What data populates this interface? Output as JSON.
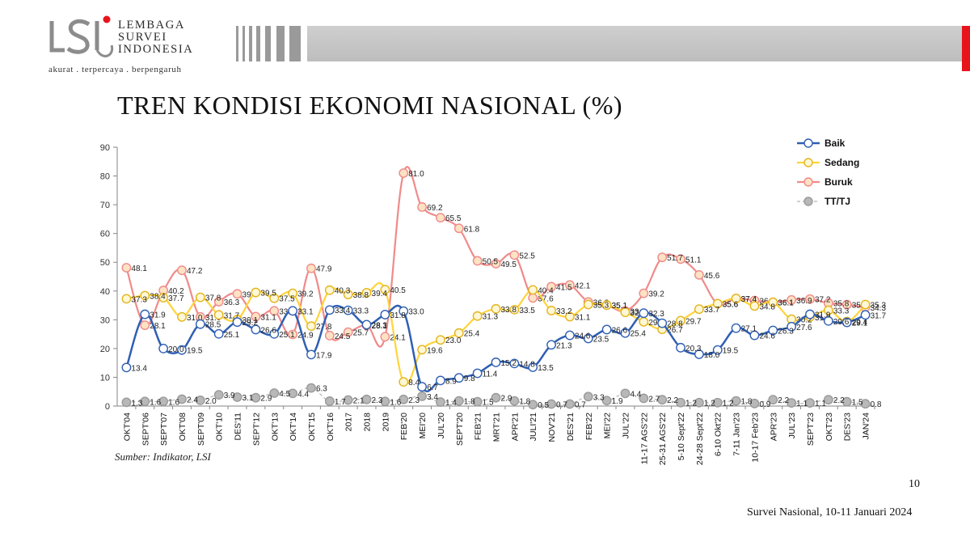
{
  "logo": {
    "line1": "LEMBAGA",
    "line2": "SURVEI",
    "line3": "INDONESIA",
    "tagline": "akurat . terpercaya . berpengaruh"
  },
  "title": "TREN KONDISI EKONOMI NASIONAL (%)",
  "source": "Sumber: Indikator, LSI",
  "page_number": "10",
  "survey_label": "Survei Nasional, 10-11 Januari 2024",
  "colors": {
    "accent_red": "#e8141c",
    "baik": "#2f5fb3",
    "sedang": "#ffd43b",
    "buruk": "#f08a8a",
    "tt": "#a6a6a6"
  },
  "chart_data": {
    "type": "line",
    "title": "TREN KONDISI EKONOMI NASIONAL (%)",
    "ylim": [
      0,
      90
    ],
    "yticks": [
      0,
      10,
      20,
      30,
      40,
      50,
      60,
      70,
      80,
      90
    ],
    "legend_position": "top-right",
    "categories": [
      "OKT'04",
      "SEPT'06",
      "SEPT'07",
      "OKT'08",
      "SEPT'09",
      "OKT'10",
      "DES'11",
      "SEPT'12",
      "OKT'13",
      "OKT'14",
      "OKT'15",
      "OKT'16",
      "2017",
      "2018",
      "2019",
      "FEB'20",
      "MEI'20",
      "JUL'20",
      "SEPT'20",
      "FEB'21",
      "MRT'21",
      "APR'21",
      "JULI'21",
      "NOV'21",
      "DES'21",
      "FEB'22",
      "MEI'22",
      "JUL'22",
      "11-17 AGS'22",
      "25-31 AGS'22",
      "5-10 Sept'22",
      "24-28 Sept'22",
      "6-10 Okt'22",
      "7-11 Jan'23",
      "10-17 Feb'23",
      "APR'23",
      "JUL'23",
      "SEPT'23",
      "OKT'23",
      "DES'23",
      "JAN'24"
    ],
    "series": [
      {
        "name": "Baik",
        "values": [
          13.4,
          31.9,
          20.0,
          19.5,
          28.5,
          25.1,
          29.2,
          26.6,
          25.1,
          33.1,
          17.9,
          33.4,
          33.3,
          28.3,
          31.8,
          33.0,
          6.7,
          8.9,
          9.8,
          11.4,
          15.2,
          14.8,
          13.5,
          21.3,
          24.6,
          23.5,
          26.6,
          25.4,
          32.3,
          28.8,
          20.3,
          18.0,
          19.5,
          27.1,
          24.6,
          26.3,
          27.6,
          31.9,
          29.6,
          29.1,
          31.7
        ]
      },
      {
        "name": "Sedang",
        "values": [
          37.3,
          38.4,
          37.7,
          31.0,
          37.8,
          31.7,
          30.1,
          39.5,
          37.5,
          39.2,
          27.8,
          40.3,
          38.8,
          39.4,
          40.5,
          8.4,
          19.6,
          23.0,
          25.4,
          31.3,
          33.8,
          33.5,
          40.4,
          33.2,
          31.1,
          35.3,
          35.1,
          32.6,
          29.3,
          26.7,
          29.7,
          33.7,
          35.6,
          37.4,
          34.8,
          36.1,
          30.2,
          31.0,
          33.3,
          29.4,
          35.3
        ]
      },
      {
        "name": "Buruk",
        "values": [
          48.1,
          28.1,
          40.2,
          47.2,
          31.0,
          36.3,
          39.0,
          31.1,
          33.1,
          24.9,
          47.9,
          24.5,
          25.7,
          28.1,
          24.1,
          81.0,
          69.2,
          65.5,
          61.8,
          50.5,
          49.5,
          52.5,
          37.6,
          41.5,
          42.1,
          36.2,
          35.1,
          33.1,
          39.2,
          51.7,
          51.1,
          45.6,
          35.6,
          37.4,
          36.7,
          36.1,
          36.9,
          37.2,
          35.8,
          35.3,
          34.3
        ]
      },
      {
        "name": "TT/TJ",
        "values": [
          1.3,
          1.6,
          1.6,
          2.4,
          2.0,
          3.9,
          3.1,
          2.9,
          4.5,
          4.4,
          6.3,
          1.7,
          2.1,
          2.3,
          1.6,
          2.3,
          3.4,
          1.4,
          1.8,
          1.5,
          2.9,
          1.8,
          0.5,
          0.7,
          0.7,
          3.3,
          1.9,
          4.4,
          2.7,
          2.2,
          1.2,
          1.2,
          1.2,
          1.8,
          0.9,
          2.2,
          1.1,
          1.1,
          2.2,
          1.5,
          0.8
        ]
      }
    ]
  }
}
